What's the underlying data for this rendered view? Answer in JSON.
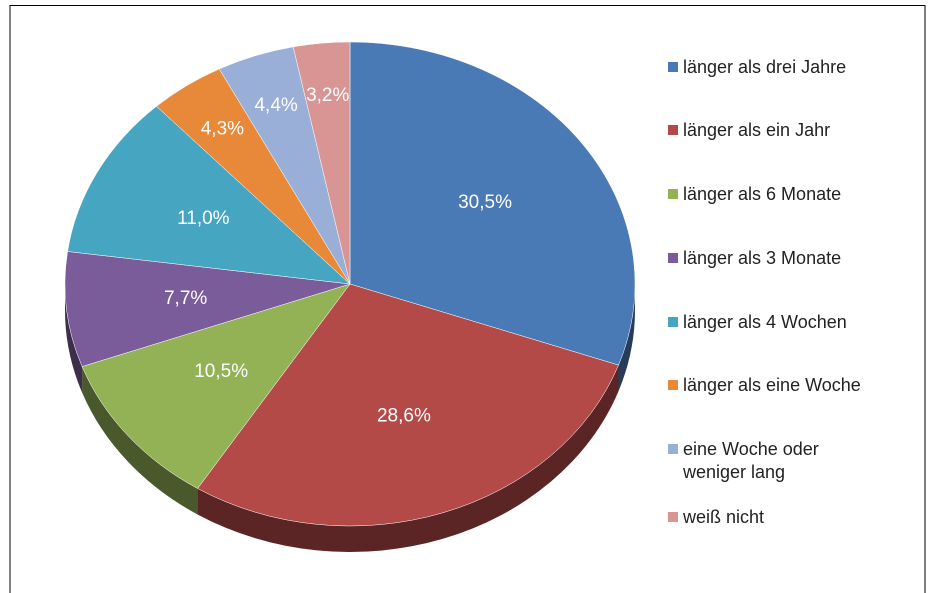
{
  "chart_data": {
    "type": "pie",
    "categories": [
      "länger als drei Jahre",
      "länger als ein Jahr",
      "länger als 6 Monate",
      "länger als 3 Monate",
      "länger als 4 Wochen",
      "länger als eine Woche",
      "eine Woche oder weniger lang",
      "weiß nicht"
    ],
    "values": [
      30.5,
      28.6,
      10.5,
      7.7,
      11.0,
      4.3,
      4.4,
      3.2
    ],
    "value_labels": [
      "30,5%",
      "28,6%",
      "10,5%",
      "7,7%",
      "11,0%",
      "4,3%",
      "4,4%",
      "3,2%"
    ],
    "colors": [
      "#4a7ab5",
      "#b34a47",
      "#93b255",
      "#7b5c9b",
      "#46a5c0",
      "#e8893a",
      "#9aafd8",
      "#d99594"
    ],
    "legend": "right"
  }
}
